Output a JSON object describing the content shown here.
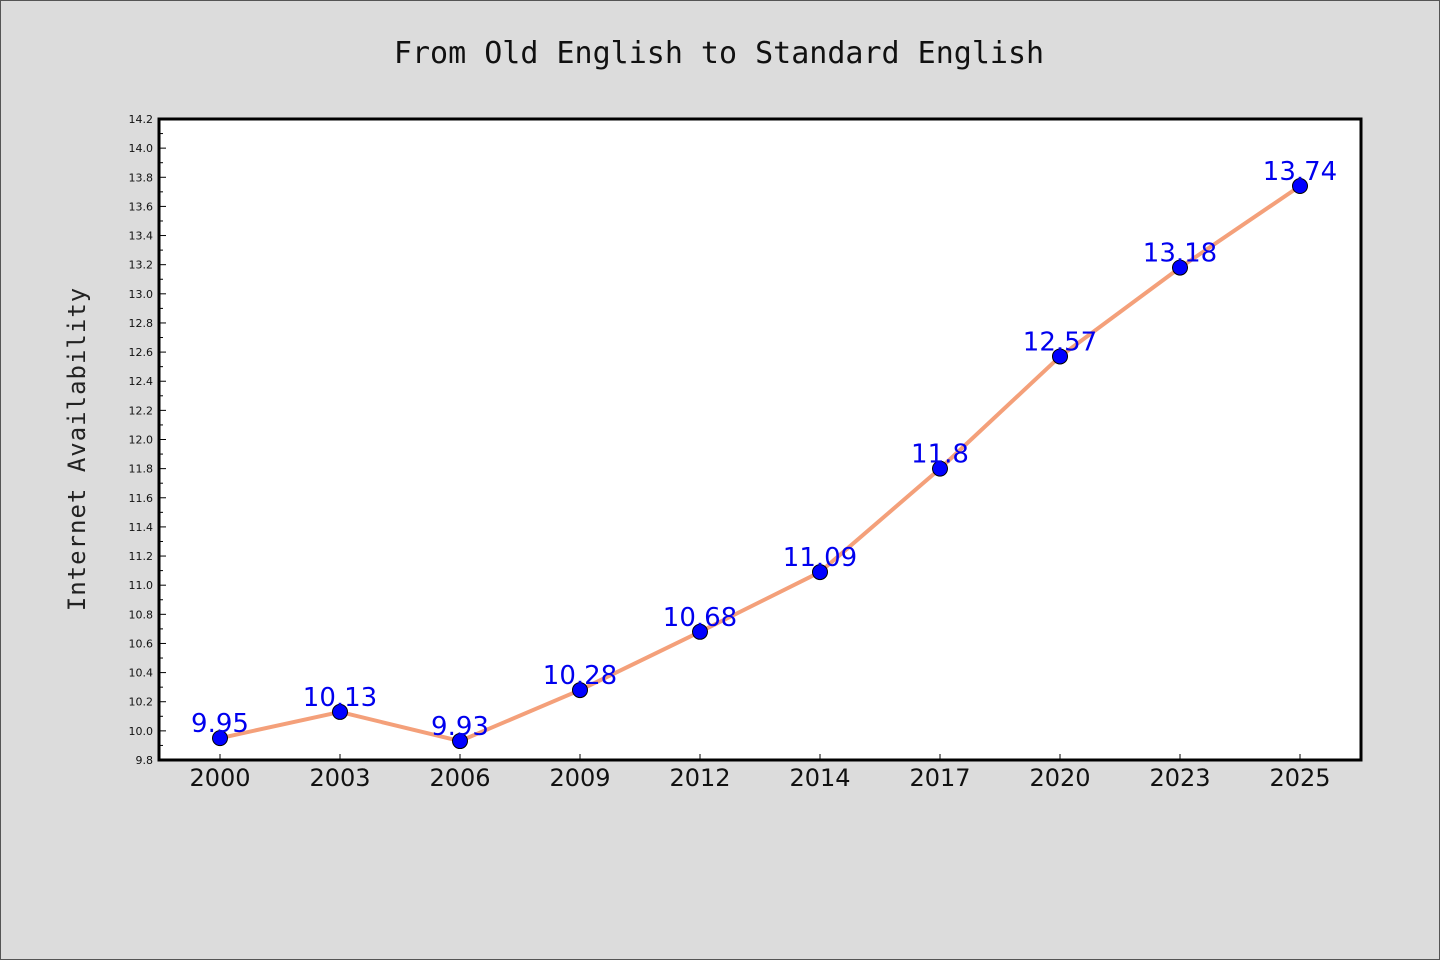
{
  "chart_data": {
    "type": "line",
    "title": "From Old English to Standard English",
    "xlabel": "",
    "ylabel": "Internet Availability",
    "categories": [
      "2000",
      "2003",
      "2006",
      "2009",
      "2012",
      "2014",
      "2017",
      "2020",
      "2023",
      "2025"
    ],
    "series": [
      {
        "values": [
          9.95,
          10.13,
          9.93,
          10.28,
          10.68,
          11.09,
          11.8,
          12.57,
          13.18,
          13.74
        ],
        "labels": [
          "9.95",
          "10.13",
          "9.93",
          "10.28",
          "10.68",
          "11.09",
          "11.8",
          "12.57",
          "13.18",
          "13.74"
        ]
      }
    ],
    "ylim": [
      9.8,
      14.2
    ],
    "yticks": [
      "9.8",
      "10.0",
      "10.2",
      "10.4",
      "10.6",
      "10.8",
      "11.0",
      "11.2",
      "11.4",
      "11.6",
      "11.8",
      "12.0",
      "12.2",
      "12.4",
      "12.6",
      "12.8",
      "13.0",
      "13.2",
      "13.4",
      "13.6",
      "13.8",
      "14.0",
      "14.2"
    ],
    "grid": false,
    "legend": "none",
    "colors": {
      "line": "#f4a07a",
      "marker": "#0000ff",
      "data_label": "#0000ee",
      "background": "#dcdcdc",
      "plot_background": "#ffffff"
    }
  }
}
